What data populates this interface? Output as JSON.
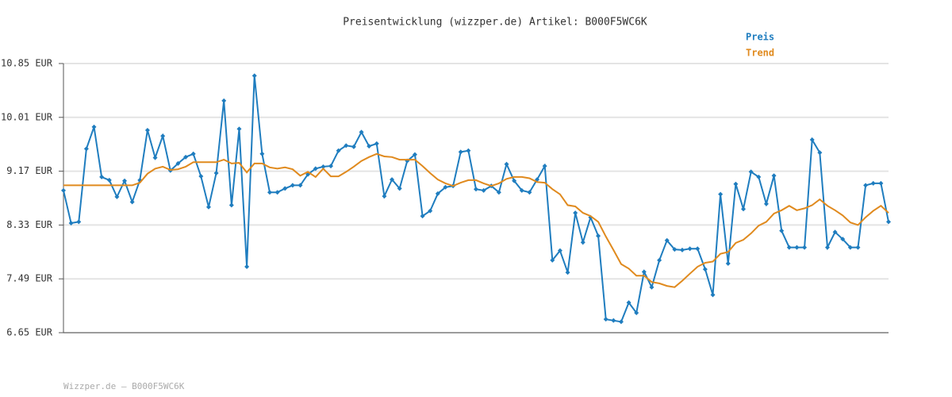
{
  "chart_data": {
    "type": "line",
    "title": "Preisentwicklung (wizzper.de) Artikel: B000F5WC6K",
    "footer": "Wizzper.de – B000F5WC6K",
    "ylim": [
      6.65,
      10.85
    ],
    "yticks": [
      {
        "value": 6.65,
        "label": "6.65 EUR"
      },
      {
        "value": 7.49,
        "label": "7.49 EUR"
      },
      {
        "value": 8.33,
        "label": "8.33 EUR"
      },
      {
        "value": 9.17,
        "label": "9.17 EUR"
      },
      {
        "value": 10.01,
        "label": "10.01 EUR"
      },
      {
        "value": 10.85,
        "label": "10.85 EUR"
      }
    ],
    "grid": true,
    "legend": "top-right",
    "series": [
      {
        "name": "Preis",
        "color": "#1f7dbf",
        "markers": true,
        "values": [
          8.87,
          8.36,
          8.38,
          9.52,
          9.86,
          9.08,
          9.03,
          8.77,
          9.02,
          8.69,
          9.03,
          9.81,
          9.38,
          9.72,
          9.18,
          9.29,
          9.39,
          9.44,
          9.09,
          8.61,
          9.14,
          10.27,
          8.64,
          9.83,
          7.68,
          10.66,
          9.44,
          8.84,
          8.84,
          8.9,
          8.95,
          8.95,
          9.12,
          9.21,
          9.24,
          9.25,
          9.49,
          9.57,
          9.55,
          9.78,
          9.56,
          9.6,
          8.78,
          9.04,
          8.9,
          9.33,
          9.43,
          8.47,
          8.55,
          8.82,
          8.92,
          8.94,
          9.47,
          9.49,
          8.89,
          8.87,
          8.94,
          8.84,
          9.28,
          9.02,
          8.87,
          8.84,
          9.04,
          9.25,
          7.78,
          7.93,
          7.59,
          8.52,
          8.06,
          8.45,
          8.16,
          6.86,
          6.84,
          6.82,
          7.12,
          6.96,
          7.6,
          7.36,
          7.78,
          8.09,
          7.95,
          7.94,
          7.96,
          7.96,
          7.64,
          7.24,
          8.81,
          7.73,
          8.97,
          8.58,
          9.16,
          9.08,
          8.66,
          9.1,
          8.24,
          7.98,
          7.98,
          7.98,
          9.66,
          9.46,
          7.98,
          8.22,
          8.11,
          7.98,
          7.98,
          8.95,
          8.98,
          8.98,
          8.38
        ]
      },
      {
        "name": "Trend",
        "color": "#e08a1e",
        "markers": false,
        "values": [
          8.95,
          8.95,
          8.95,
          8.95,
          8.95,
          8.95,
          8.95,
          8.95,
          8.95,
          8.95,
          8.99,
          9.13,
          9.21,
          9.24,
          9.19,
          9.2,
          9.24,
          9.31,
          9.31,
          9.31,
          9.31,
          9.35,
          9.29,
          9.3,
          9.15,
          9.29,
          9.29,
          9.23,
          9.21,
          9.23,
          9.2,
          9.1,
          9.16,
          9.08,
          9.21,
          9.09,
          9.09,
          9.16,
          9.24,
          9.33,
          9.39,
          9.44,
          9.4,
          9.39,
          9.35,
          9.35,
          9.35,
          9.25,
          9.14,
          9.04,
          8.98,
          8.94,
          8.99,
          9.03,
          9.03,
          8.98,
          8.94,
          8.98,
          9.05,
          9.08,
          9.08,
          9.06,
          9.0,
          8.99,
          8.89,
          8.81,
          8.64,
          8.62,
          8.52,
          8.47,
          8.38,
          8.15,
          7.94,
          7.72,
          7.65,
          7.54,
          7.54,
          7.44,
          7.42,
          7.38,
          7.36,
          7.46,
          7.57,
          7.68,
          7.74,
          7.76,
          7.88,
          7.91,
          8.05,
          8.1,
          8.2,
          8.32,
          8.38,
          8.51,
          8.56,
          8.63,
          8.56,
          8.59,
          8.64,
          8.73,
          8.63,
          8.56,
          8.48,
          8.37,
          8.33,
          8.45,
          8.55,
          8.63,
          8.52
        ]
      }
    ]
  }
}
